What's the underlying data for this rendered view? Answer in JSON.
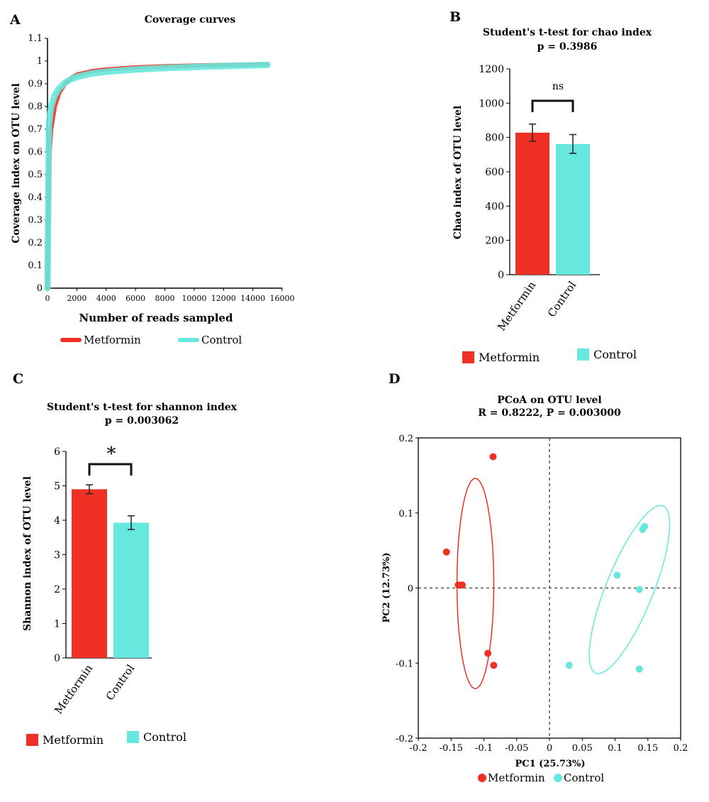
{
  "colors": {
    "metformin": "#ee3124",
    "control": "#66e8de",
    "axis": "#000000",
    "dash": "#555555"
  },
  "chart_data": [
    {
      "panel": "A",
      "type": "line",
      "title": "Coverage curves",
      "xlabel": "Number of reads sampled",
      "ylabel": "Coverage index on OTU level",
      "xlim": [
        0,
        16000
      ],
      "ylim": [
        0,
        1.1
      ],
      "xticks": [
        "0",
        "2000",
        "4000",
        "6000",
        "8000",
        "10000",
        "12000",
        "14000",
        "16000"
      ],
      "yticks": [
        "0",
        "0.1",
        "0.2",
        "0.3",
        "0.4",
        "0.5",
        "0.6",
        "0.7",
        "0.8",
        "0.9",
        "1",
        "1.1"
      ],
      "legend": [
        "Metformin",
        "Control"
      ],
      "legend_position": "bottom",
      "series": [
        {
          "name": "Metformin",
          "x": [
            0,
            100,
            250,
            500,
            800,
            1200,
            1600,
            2000,
            3000,
            4000,
            6000,
            8000,
            10000,
            12000,
            15000
          ],
          "y": [
            0,
            0.55,
            0.7,
            0.8,
            0.86,
            0.9,
            0.925,
            0.94,
            0.955,
            0.963,
            0.972,
            0.977,
            0.98,
            0.983,
            0.986
          ]
        },
        {
          "name": "Control",
          "x": [
            0,
            100,
            250,
            500,
            800,
            1200,
            1600,
            2000,
            3000,
            4000,
            6000,
            8000,
            10000,
            12000,
            15000
          ],
          "y": [
            0,
            0.72,
            0.8,
            0.85,
            0.88,
            0.905,
            0.92,
            0.93,
            0.945,
            0.953,
            0.963,
            0.969,
            0.974,
            0.978,
            0.983
          ]
        }
      ]
    },
    {
      "panel": "B",
      "type": "bar",
      "title": "Student's t-test for chao index",
      "subtitle": "p = 0.3986",
      "ylabel": "Chao index of OTU level",
      "ylim": [
        0,
        1200
      ],
      "yticks": [
        "0",
        "200",
        "400",
        "600",
        "800",
        "1000",
        "1200"
      ],
      "categories": [
        "Metformin",
        "Control"
      ],
      "values": [
        828,
        762
      ],
      "errors": [
        50,
        55
      ],
      "significance": "ns",
      "legend": [
        "Metformin",
        "Control"
      ],
      "legend_position": "bottom"
    },
    {
      "panel": "C",
      "type": "bar",
      "title": "Student's t-test for shannon index",
      "subtitle": "p = 0.003062",
      "ylabel": "Shannon index of OTU level",
      "ylim": [
        0,
        6
      ],
      "yticks": [
        "0",
        "1",
        "2",
        "3",
        "4",
        "5",
        "6"
      ],
      "categories": [
        "Metformin",
        "Control"
      ],
      "values": [
        4.9,
        3.93
      ],
      "errors": [
        0.13,
        0.2
      ],
      "significance": "*",
      "legend": [
        "Metformin",
        "Control"
      ],
      "legend_position": "bottom"
    },
    {
      "panel": "D",
      "type": "scatter",
      "title": "PCoA on OTU level",
      "subtitle": "R = 0.8222, P = 0.003000",
      "xlabel": "PC1 (25.73%)",
      "ylabel": "PC2 (12.73%)",
      "xlim": [
        -0.2,
        0.2
      ],
      "ylim": [
        -0.2,
        0.2
      ],
      "xticks": [
        "-0.2",
        "-0.15",
        "-0.1",
        "-0.05",
        "0",
        "0.05",
        "0.1",
        "0.15",
        "0.2"
      ],
      "yticks": [
        "-0.2",
        "-0.1",
        "0",
        "0.1",
        "0.2"
      ],
      "legend": [
        "Metformin",
        "Control"
      ],
      "legend_position": "bottom",
      "series": [
        {
          "name": "Metformin",
          "points": [
            [
              -0.086,
              0.175
            ],
            [
              -0.157,
              0.048
            ],
            [
              -0.139,
              0.004
            ],
            [
              -0.133,
              0.004
            ],
            [
              -0.094,
              -0.087
            ],
            [
              -0.085,
              -0.103
            ]
          ],
          "ellipse": {
            "cx": -0.113,
            "cy": 0.006,
            "rx": 0.028,
            "ry": 0.14,
            "rot": 0
          }
        },
        {
          "name": "Control",
          "points": [
            [
              0.145,
              0.082
            ],
            [
              0.142,
              0.078
            ],
            [
              0.103,
              0.017
            ],
            [
              0.137,
              -0.002
            ],
            [
              0.03,
              -0.103
            ],
            [
              0.137,
              -0.108
            ]
          ],
          "ellipse": {
            "cx": 0.122,
            "cy": -0.002,
            "rx": 0.036,
            "ry": 0.12,
            "rot": 22
          }
        }
      ]
    }
  ]
}
